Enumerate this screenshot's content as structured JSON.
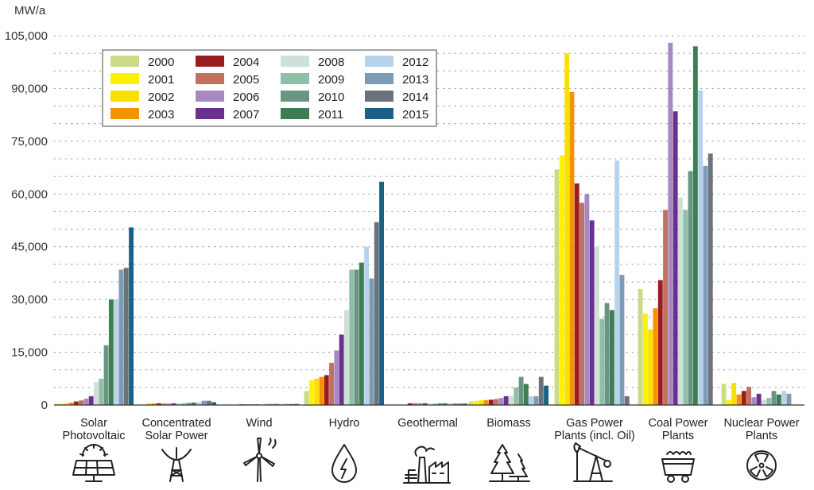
{
  "chart_data": {
    "type": "bar",
    "ylabel": "MW/a",
    "ylim": [
      0,
      105000
    ],
    "yticks": [
      0,
      15000,
      30000,
      45000,
      60000,
      75000,
      90000,
      105000
    ],
    "ytick_labels": [
      "0",
      "15,000",
      "30,000",
      "45,000",
      "60,000",
      "75,000",
      "90,000",
      "105,000"
    ],
    "grid": "dotted-horizontal",
    "legend_position": "top-left",
    "categories": [
      {
        "line1": "Solar",
        "line2": "Photovoltaic",
        "icon": "solar-panel-icon"
      },
      {
        "line1": "Concentrated",
        "line2": "Solar Power",
        "icon": "solar-dish-icon"
      },
      {
        "line1": "Wind",
        "line2": "",
        "icon": "wind-turbine-icon"
      },
      {
        "line1": "Hydro",
        "line2": "",
        "icon": "water-drop-icon"
      },
      {
        "line1": "Geothermal",
        "line2": "",
        "icon": "geothermal-plant-icon"
      },
      {
        "line1": "Biomass",
        "line2": "",
        "icon": "trees-icon"
      },
      {
        "line1": "Gas Power",
        "line2": "Plants (incl. Oil)",
        "icon": "oil-pump-icon"
      },
      {
        "line1": "Coal Power",
        "line2": "Plants",
        "icon": "coal-cart-icon"
      },
      {
        "line1": "Nuclear Power",
        "line2": "Plants",
        "icon": "radiation-icon"
      }
    ],
    "series": [
      {
        "name": "2000",
        "color": "#c9dc85",
        "values": [
          300,
          0,
          0,
          4000,
          0,
          1000,
          67000,
          33000,
          6000
        ]
      },
      {
        "name": "2001",
        "color": "#fff200",
        "values": [
          400,
          0,
          0,
          7000,
          0,
          1200,
          71000,
          26000,
          1500
        ]
      },
      {
        "name": "2002",
        "color": "#f9e000",
        "values": [
          500,
          500,
          0,
          7500,
          0,
          1300,
          100000,
          21500,
          6300
        ]
      },
      {
        "name": "2003",
        "color": "#f49200",
        "values": [
          700,
          400,
          0,
          8000,
          0,
          1400,
          89000,
          27500,
          3000
        ]
      },
      {
        "name": "2004",
        "color": "#9b1b1f",
        "values": [
          1000,
          500,
          200,
          8500,
          500,
          1500,
          63000,
          35500,
          4000
        ]
      },
      {
        "name": "2005",
        "color": "#c07260",
        "values": [
          1300,
          400,
          200,
          12000,
          500,
          1700,
          57500,
          55500,
          5200
        ]
      },
      {
        "name": "2006",
        "color": "#a888c0",
        "values": [
          1800,
          400,
          200,
          15500,
          500,
          2000,
          60000,
          103000,
          2200
        ]
      },
      {
        "name": "2007",
        "color": "#6b2f8f",
        "values": [
          2500,
          500,
          200,
          20000,
          500,
          2500,
          52500,
          83500,
          3200
        ]
      },
      {
        "name": "2008",
        "color": "#cfe0d6",
        "values": [
          6500,
          500,
          200,
          27000,
          400,
          2600,
          45000,
          59000,
          1500
        ]
      },
      {
        "name": "2009",
        "color": "#8fbfa7",
        "values": [
          7500,
          500,
          300,
          38500,
          400,
          5000,
          24500,
          55500,
          2000
        ]
      },
      {
        "name": "2010",
        "color": "#6a9484",
        "values": [
          17000,
          600,
          300,
          38500,
          500,
          8000,
          29000,
          66500,
          4000
        ]
      },
      {
        "name": "2011",
        "color": "#3f7d55",
        "values": [
          30000,
          700,
          300,
          40500,
          500,
          6000,
          27000,
          102000,
          3000
        ]
      },
      {
        "name": "2012",
        "color": "#b8d2ec",
        "values": [
          30000,
          800,
          300,
          45000,
          500,
          2500,
          69500,
          89500,
          4000
        ]
      },
      {
        "name": "2013",
        "color": "#7e9bb5",
        "values": [
          38500,
          1200,
          300,
          36000,
          500,
          2500,
          37000,
          68000,
          3200
        ]
      },
      {
        "name": "2014",
        "color": "#6c727a",
        "values": [
          39000,
          1200,
          300,
          52000,
          400,
          8000,
          2500,
          71500,
          0
        ]
      },
      {
        "name": "2015",
        "color": "#1b6185",
        "values": [
          50500,
          800,
          300,
          63500,
          400,
          5500,
          0,
          0,
          0
        ]
      }
    ]
  }
}
